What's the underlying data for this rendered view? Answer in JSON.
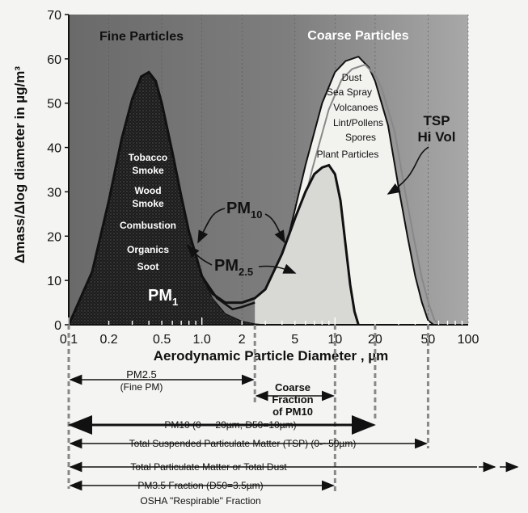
{
  "chart_data": {
    "type": "area",
    "xscale": "log",
    "xlim": [
      0.1,
      100
    ],
    "ylim": [
      0,
      70
    ],
    "xlabel": "Aerodynamic Particle Diameter , µm",
    "ylabel": "Δmass/Δlog diameter in µg/m³",
    "x_ticks": [
      0.1,
      0.2,
      0.5,
      1.0,
      2,
      5,
      10,
      20,
      50,
      100
    ],
    "x_tick_labels": [
      "0.1",
      "0.2",
      "0.5",
      "1.0",
      "2",
      "5",
      "10",
      "20",
      "50",
      "100"
    ],
    "y_ticks": [
      0,
      10,
      20,
      30,
      40,
      50,
      60,
      70
    ],
    "y_tick_labels": [
      "0",
      "10",
      "20",
      "30",
      "40",
      "50",
      "60",
      "70"
    ],
    "regions": {
      "fine": "Fine Particles",
      "coarse": "Coarse Particles"
    },
    "fine_sources": [
      "Tobacco",
      "Smoke",
      "Wood",
      "Smoke",
      "Combustion",
      "Organics",
      "Soot"
    ],
    "coarse_sources": [
      "Dust",
      "Sea Spray",
      "Volcanoes",
      "Lint/Pollens",
      "Spores",
      "Plant Particles"
    ],
    "series": [
      {
        "name": "PM1",
        "x": [
          0.1,
          0.15,
          0.2,
          0.25,
          0.3,
          0.35,
          0.4,
          0.45,
          0.5,
          0.6,
          0.7,
          0.8,
          1.0,
          1.2,
          1.5,
          2.0,
          2.5,
          3.0
        ],
        "y": [
          0,
          12,
          28,
          42,
          51,
          56,
          57,
          55,
          50,
          39,
          29,
          21,
          11,
          6,
          2.5,
          0.8,
          0.2,
          0
        ]
      },
      {
        "name": "PM10",
        "x": [
          0.1,
          0.15,
          0.2,
          0.25,
          0.3,
          0.35,
          0.4,
          0.45,
          0.5,
          0.6,
          0.7,
          0.8,
          1.0,
          1.2,
          1.5,
          2.0,
          2.5,
          3.0,
          4.0,
          5.0,
          6.0,
          7.0,
          8.0,
          9.0,
          10.0,
          11.0,
          12.0,
          13.0,
          14.0,
          15.0
        ],
        "y": [
          0,
          12,
          28,
          42,
          51,
          56,
          57,
          55,
          50,
          39,
          29,
          21,
          11,
          7,
          5,
          5,
          6,
          8,
          16,
          24,
          30,
          34,
          35.5,
          36,
          34,
          28,
          18,
          9,
          3,
          0
        ]
      },
      {
        "name": "TSP Hi Vol",
        "x": [
          2.5,
          3.0,
          4.0,
          5.0,
          6.0,
          8.0,
          10.0,
          12.0,
          15.0,
          18.0,
          20.0,
          25.0,
          30.0,
          35.0,
          40.0,
          45.0,
          50.0,
          55.0
        ],
        "y": [
          0,
          3,
          14,
          26,
          36,
          50,
          57,
          59.5,
          60.5,
          58,
          55,
          45,
          31,
          20,
          11,
          5,
          1,
          0
        ]
      },
      {
        "name": "PM2.5",
        "x": [
          1.0,
          1.3,
          1.7,
          2.0,
          2.5
        ],
        "y": [
          11,
          6,
          3.5,
          4,
          5
        ]
      }
    ],
    "curve_labels": [
      {
        "text": "PM",
        "sub": "10"
      },
      {
        "text": "PM",
        "sub": "2.5"
      },
      {
        "text": "PM",
        "sub": "1"
      },
      {
        "text": "TSP",
        "line2": "Hi Vol"
      }
    ],
    "size_ranges": [
      {
        "label": "PM2.5",
        "line2": "(Fine PM)",
        "from": 0.1,
        "to": 2.5
      },
      {
        "label": "Coarse",
        "line2": "Fraction",
        "line3": "of PM10",
        "from": 2.5,
        "to": 10
      },
      {
        "label": "PM10 (0 - ~20µm, D50=10µm)",
        "from": 0.1,
        "to": 20
      },
      {
        "label": "Total Suspended Particulate Matter (TSP) (0-~50µm)",
        "from": 0.1,
        "to": 50
      },
      {
        "label": "Total Particulate Matter or Total Dust",
        "from": 0.1,
        "to": 100
      },
      {
        "label": "PM3.5 Fraction (D50=3.5µm)",
        "from": 0.1,
        "to": 10
      },
      {
        "label": "OSHA \"Respirable\" Fraction",
        "from": 0.1,
        "to": 10
      }
    ]
  }
}
